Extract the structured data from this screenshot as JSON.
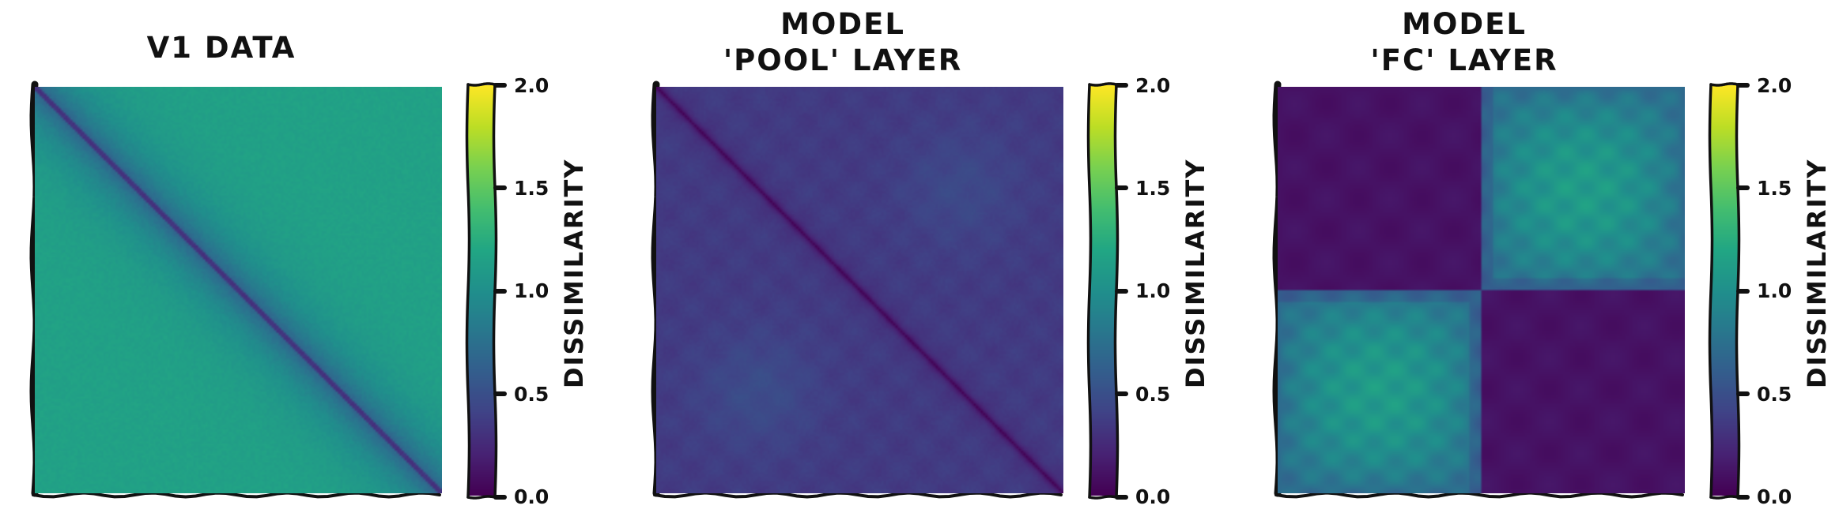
{
  "chart_data": [
    {
      "type": "heatmap",
      "title": [
        "V1 data"
      ],
      "pattern": "diagonal",
      "description_values": {
        "diagonal": 0.0,
        "near_diagonal": 0.6,
        "off_diagonal": 1.15
      },
      "colorbar": {
        "label": "Dissimilarity",
        "range": [
          0.0,
          2.0
        ],
        "ticks": [
          "0.0",
          "0.5",
          "1.0",
          "1.5",
          "2.0"
        ],
        "colormap": "viridis"
      }
    },
    {
      "type": "heatmap",
      "title": [
        "Model",
        "'Pool' layer"
      ],
      "pattern": "diagonal",
      "description_values": {
        "diagonal": 0.0,
        "off_diagonal": 0.35,
        "max_patch": 0.5
      },
      "colorbar": {
        "label": "Dissimilarity",
        "range": [
          0.0,
          2.0
        ],
        "ticks": [
          "0.0",
          "0.5",
          "1.0",
          "1.5",
          "2.0"
        ],
        "colormap": "viridis"
      }
    },
    {
      "type": "heatmap",
      "title": [
        "Model",
        "'FC' layer"
      ],
      "pattern": "block",
      "description_values": {
        "within_block": 0.1,
        "between_block_center": 1.1,
        "between_block_edge": 0.7
      },
      "colorbar": {
        "label": "Dissimilarity",
        "range": [
          0.0,
          2.0
        ],
        "ticks": [
          "0.0",
          "0.5",
          "1.0",
          "1.5",
          "2.0"
        ],
        "colormap": "viridis"
      }
    }
  ]
}
